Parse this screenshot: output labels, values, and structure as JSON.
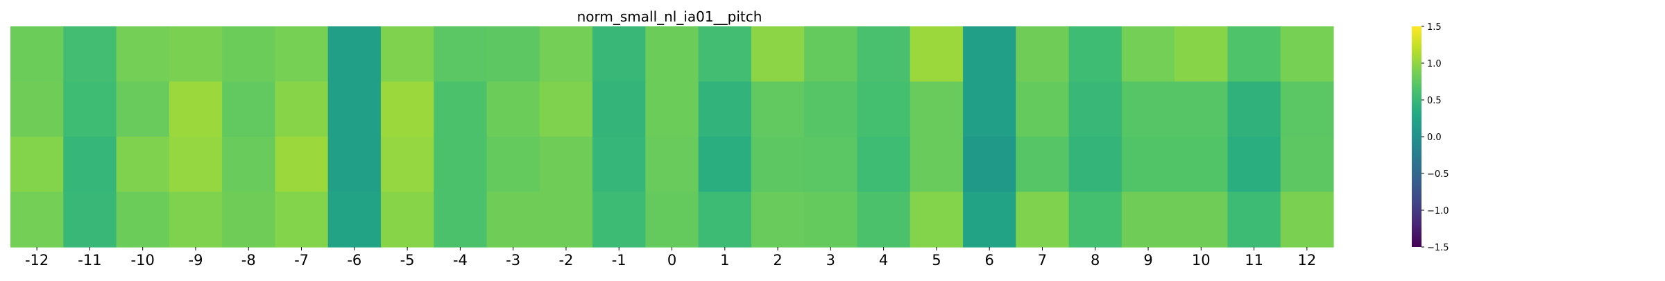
{
  "chart_data": {
    "type": "heatmap",
    "title": "norm_small_nl_ia01__pitch",
    "xlabel": "",
    "ylabel": "",
    "x_ticks": [
      "-12",
      "-11",
      "-10",
      "-9",
      "-8",
      "-7",
      "-6",
      "-5",
      "-4",
      "-3",
      "-2",
      "-1",
      "0",
      "1",
      "2",
      "3",
      "4",
      "5",
      "6",
      "7",
      "8",
      "9",
      "10",
      "11",
      "12"
    ],
    "y_ticks": [],
    "rows": 4,
    "values": [
      [
        0.82,
        0.58,
        0.86,
        0.9,
        0.82,
        0.88,
        0.2,
        0.92,
        0.72,
        0.74,
        0.86,
        0.5,
        0.82,
        0.58,
        0.98,
        0.78,
        0.62,
        1.05,
        0.2,
        0.84,
        0.56,
        0.86,
        0.96,
        0.66,
        0.88
      ],
      [
        0.84,
        0.56,
        0.8,
        1.05,
        0.76,
        0.96,
        0.2,
        1.05,
        0.64,
        0.82,
        0.92,
        0.46,
        0.82,
        0.44,
        0.76,
        0.7,
        0.6,
        0.8,
        0.18,
        0.78,
        0.5,
        0.7,
        0.7,
        0.42,
        0.72
      ],
      [
        0.94,
        0.48,
        0.92,
        1.02,
        0.8,
        1.05,
        0.2,
        1.02,
        0.64,
        0.78,
        0.84,
        0.48,
        0.8,
        0.38,
        0.74,
        0.72,
        0.56,
        0.8,
        0.1,
        0.7,
        0.46,
        0.68,
        0.68,
        0.38,
        0.74
      ],
      [
        0.86,
        0.5,
        0.82,
        0.92,
        0.84,
        0.94,
        0.24,
        0.96,
        0.64,
        0.84,
        0.84,
        0.54,
        0.78,
        0.54,
        0.8,
        0.78,
        0.64,
        0.94,
        0.24,
        0.92,
        0.6,
        0.84,
        0.84,
        0.54,
        0.9
      ]
    ],
    "colormap": "viridis",
    "vmin": -1.5,
    "vmax": 1.5,
    "colorbar_ticks": [
      "1.5",
      "1.0",
      "0.5",
      "0.0",
      "−0.5",
      "−1.0",
      "−1.5"
    ],
    "colorbar_tick_values": [
      1.5,
      1.0,
      0.5,
      0.0,
      -0.5,
      -1.0,
      -1.5
    ],
    "grid": false,
    "legend": "colorbar-right"
  }
}
